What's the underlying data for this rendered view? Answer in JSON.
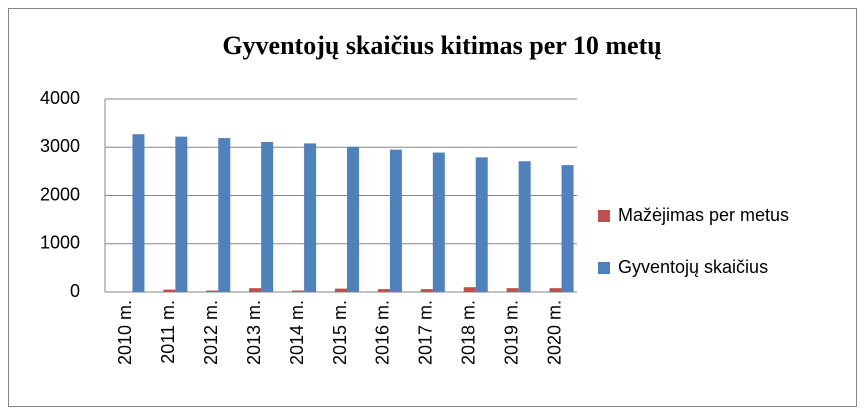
{
  "chart_data": {
    "type": "bar",
    "title": "Gyventojų skaičius kitimas per 10 metų",
    "categories": [
      "2010 m.",
      "2011 m.",
      "2012 m.",
      "2013 m.",
      "2014 m.",
      "2015 m.",
      "2016 m.",
      "2017 m.",
      "2018 m.",
      "2019 m.",
      "2020 m."
    ],
    "series": [
      {
        "name": "Mažėjimas per metus",
        "color": "#c0504d",
        "values": [
          0,
          50,
          30,
          80,
          30,
          70,
          60,
          60,
          100,
          80,
          80
        ]
      },
      {
        "name": "Gyventojų skaičius",
        "color": "#4f81bd",
        "values": [
          3270,
          3220,
          3190,
          3110,
          3080,
          3010,
          2950,
          2890,
          2790,
          2710,
          2630
        ]
      }
    ],
    "ylim": [
      0,
      4000
    ],
    "yticks": [
      0,
      1000,
      2000,
      3000,
      4000
    ],
    "grid": true,
    "legend": "right"
  }
}
